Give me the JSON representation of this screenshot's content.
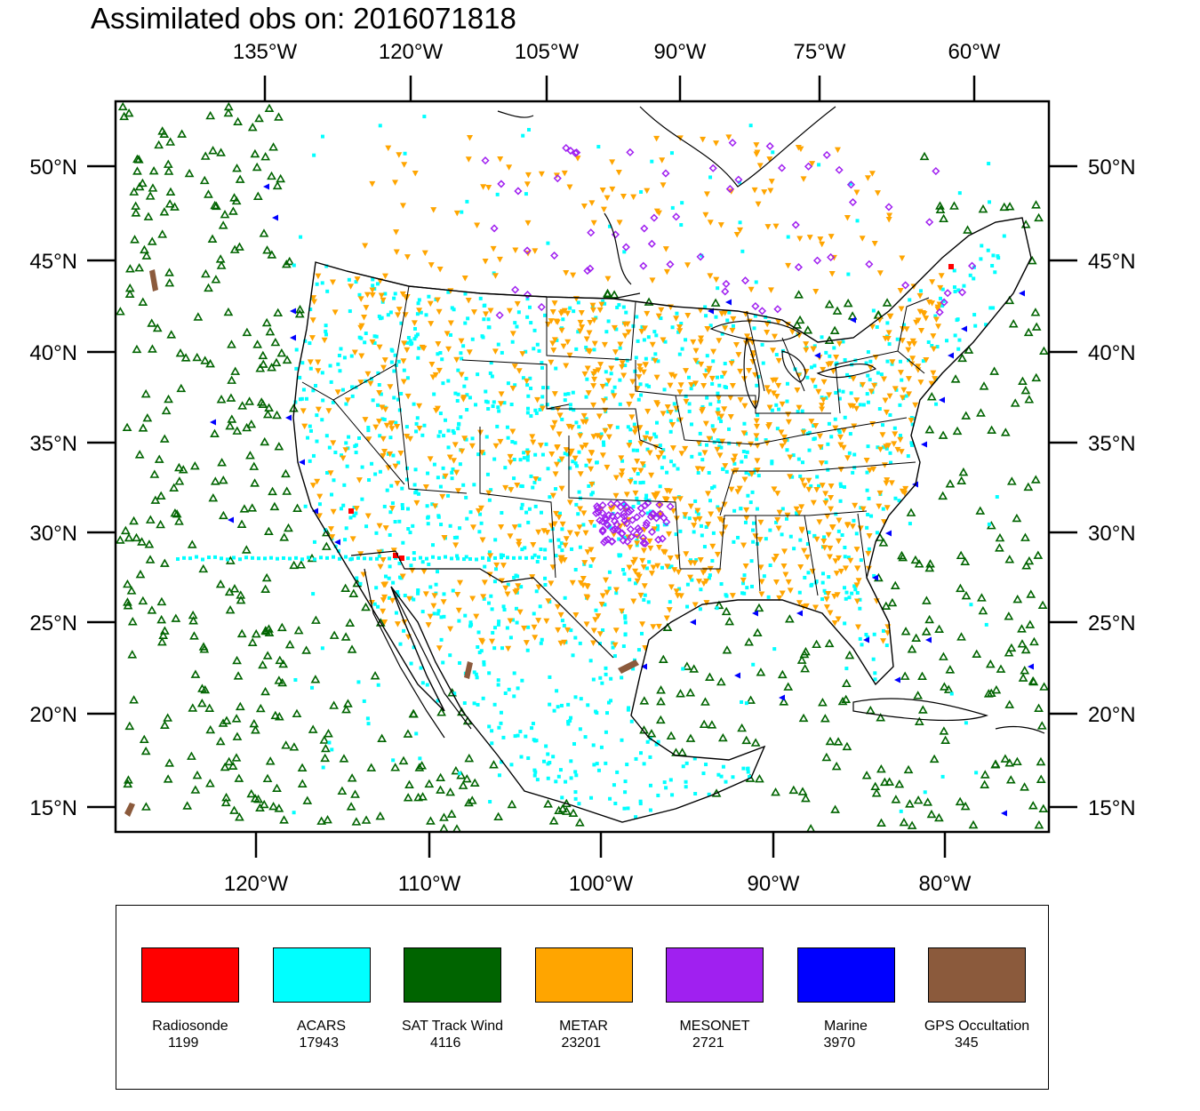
{
  "title": "Assimilated obs on: 2016071818",
  "map": {
    "top_lon_labels": [
      "135°W",
      "120°W",
      "105°W",
      "90°W",
      "75°W",
      "60°W"
    ],
    "bottom_lon_labels": [
      "120°W",
      "110°W",
      "100°W",
      "90°W",
      "80°W"
    ],
    "lat_labels": [
      "50°N",
      "45°N",
      "40°N",
      "35°N",
      "30°N",
      "25°N",
      "20°N",
      "15°N"
    ],
    "lat_range": [
      14,
      54
    ],
    "lon_range_bottom": [
      -128,
      -74
    ],
    "region": "Contiguous United States, southern Canada, Mexico, Gulf of Mexico, eastern Pacific and western Atlantic"
  },
  "legend": {
    "items": [
      {
        "label": "Radiosonde",
        "count": "1199",
        "color": "#ff0000"
      },
      {
        "label": "ACARS",
        "count": "17943",
        "color": "#00ffff"
      },
      {
        "label": "SAT Track Wind",
        "count": "4116",
        "color": "#006400"
      },
      {
        "label": "METAR",
        "count": "23201",
        "color": "#ffa500"
      },
      {
        "label": "MESONET",
        "count": "2721",
        "color": "#a020f0"
      },
      {
        "label": "Marine",
        "count": "3970",
        "color": "#0000ff"
      },
      {
        "label": "GPS Occultation",
        "count": "345",
        "color": "#8b5a3c"
      }
    ]
  }
}
